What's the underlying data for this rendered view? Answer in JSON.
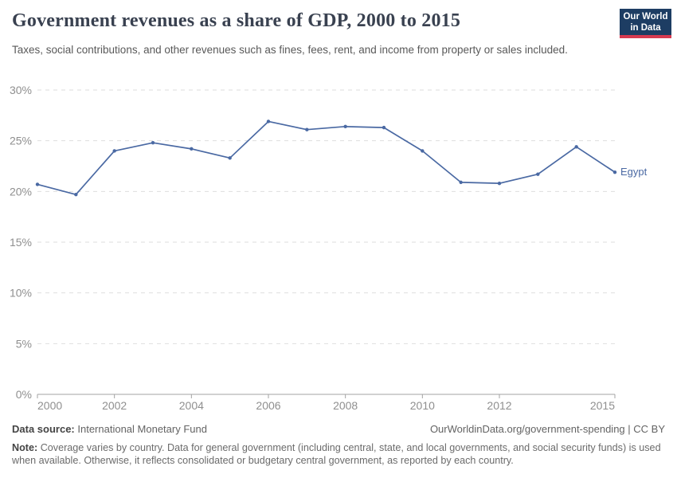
{
  "header": {
    "title": "Government revenues as a share of GDP, 2000 to 2015",
    "subtitle": "Taxes, social contributions, and other revenues such as fines, fees, rent, and income from property or sales included.",
    "logo": {
      "line1": "Our World",
      "line2": "in Data",
      "bg": "#1d3d63",
      "stripe": "#d73a50"
    }
  },
  "chart_data": {
    "type": "line",
    "title": "Government revenues as a share of GDP, 2000 to 2015",
    "x": [
      2000,
      2001,
      2002,
      2003,
      2004,
      2005,
      2006,
      2007,
      2008,
      2009,
      2010,
      2011,
      2012,
      2013,
      2014,
      2015
    ],
    "series": [
      {
        "name": "Egypt",
        "color": "#4a69a3",
        "values": [
          20.7,
          19.7,
          24.0,
          24.8,
          24.2,
          23.3,
          26.9,
          26.1,
          26.4,
          26.3,
          24.0,
          20.9,
          20.8,
          21.7,
          24.4,
          21.9
        ]
      }
    ],
    "xticks": [
      2000,
      2002,
      2004,
      2006,
      2008,
      2010,
      2012,
      2015
    ],
    "yticks": [
      0,
      5,
      10,
      15,
      20,
      25,
      30
    ],
    "ytick_suffix": "%",
    "xlim": [
      2000,
      2015
    ],
    "ylim": [
      0,
      30
    ],
    "grid": "horizontal-dashed",
    "legend_position": "end-of-line-label",
    "colors": {
      "line": "#4a69a3",
      "gridline": "#dedede",
      "axis": "#a3a3a3",
      "tick_label": "#8f8f8f"
    }
  },
  "footer": {
    "datasource_label": "Data source:",
    "datasource": "International Monetary Fund",
    "link": "OurWorldinData.org/government-spending | CC BY",
    "note_label": "Note:",
    "note": "Coverage varies by country. Data for general government (including central, state, and local governments, and social security funds) is used when available. Otherwise, it reflects consolidated or budgetary central government, as reported by each country."
  }
}
